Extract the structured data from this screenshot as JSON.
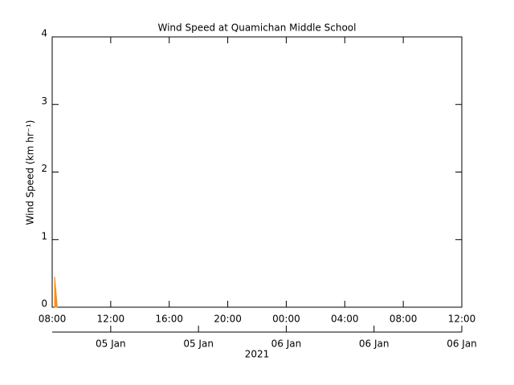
{
  "chart_data": {
    "type": "area",
    "title": "Wind Speed at Quamichan Middle School",
    "ylabel": "Wind Speed (km hr⁻¹)",
    "xlabel": "2021",
    "x": [
      8.17,
      8.33
    ],
    "series": [
      {
        "color": "#ff8c00",
        "values": [
          0.45,
          0.05
        ]
      }
    ],
    "xlim": [
      8,
      36
    ],
    "ylim": [
      0,
      4
    ],
    "xticks": [
      {
        "value": 8,
        "label": "08:00"
      },
      {
        "value": 12,
        "label": "12:00"
      },
      {
        "value": 16,
        "label": "16:00"
      },
      {
        "value": 20,
        "label": "20:00"
      },
      {
        "value": 24,
        "label": "00:00"
      },
      {
        "value": 28,
        "label": "04:00"
      },
      {
        "value": 32,
        "label": "08:00"
      },
      {
        "value": 36,
        "label": "12:00"
      }
    ],
    "x2ticks": [
      {
        "value": 12,
        "label": "05 Jan"
      },
      {
        "value": 18,
        "label": "05 Jan"
      },
      {
        "value": 24,
        "label": "06 Jan"
      },
      {
        "value": 30,
        "label": "06 Jan"
      },
      {
        "value": 36,
        "label": "06 Jan"
      }
    ],
    "yticks": [
      0,
      1,
      2,
      3,
      4
    ]
  }
}
